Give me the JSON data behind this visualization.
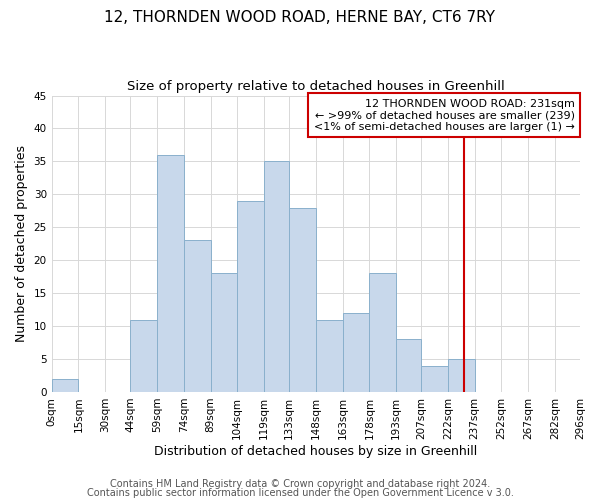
{
  "title": "12, THORNDEN WOOD ROAD, HERNE BAY, CT6 7RY",
  "subtitle": "Size of property relative to detached houses in Greenhill",
  "xlabel": "Distribution of detached houses by size in Greenhill",
  "ylabel": "Number of detached properties",
  "footnote1": "Contains HM Land Registry data © Crown copyright and database right 2024.",
  "footnote2": "Contains public sector information licensed under the Open Government Licence v 3.0.",
  "bin_edges": [
    0,
    15,
    30,
    44,
    59,
    74,
    89,
    104,
    119,
    133,
    148,
    163,
    178,
    193,
    207,
    222,
    237,
    252,
    267,
    282,
    296
  ],
  "bar_heights": [
    2,
    0,
    0,
    11,
    36,
    23,
    18,
    29,
    35,
    28,
    11,
    12,
    18,
    8,
    4,
    5,
    0,
    0,
    0,
    0
  ],
  "bar_color": "#c8d8eb",
  "bar_edgecolor": "#8ab0cc",
  "vline_x": 231,
  "vline_color": "#cc0000",
  "ylim": [
    0,
    45
  ],
  "yticks": [
    0,
    5,
    10,
    15,
    20,
    25,
    30,
    35,
    40,
    45
  ],
  "xtick_labels": [
    "0sqm",
    "15sqm",
    "30sqm",
    "44sqm",
    "59sqm",
    "74sqm",
    "89sqm",
    "104sqm",
    "119sqm",
    "133sqm",
    "148sqm",
    "163sqm",
    "178sqm",
    "193sqm",
    "207sqm",
    "222sqm",
    "237sqm",
    "252sqm",
    "267sqm",
    "282sqm",
    "296sqm"
  ],
  "legend_title": "12 THORNDEN WOOD ROAD: 231sqm",
  "legend_line1": "← >99% of detached houses are smaller (239)",
  "legend_line2": "<1% of semi-detached houses are larger (1) →",
  "legend_box_color": "#ffffff",
  "legend_box_edgecolor": "#cc0000",
  "title_fontsize": 11,
  "subtitle_fontsize": 9.5,
  "axis_label_fontsize": 9,
  "tick_fontsize": 7.5,
  "legend_fontsize": 8,
  "footnote_fontsize": 7,
  "grid_color": "#d8d8d8",
  "background_color": "#ffffff"
}
